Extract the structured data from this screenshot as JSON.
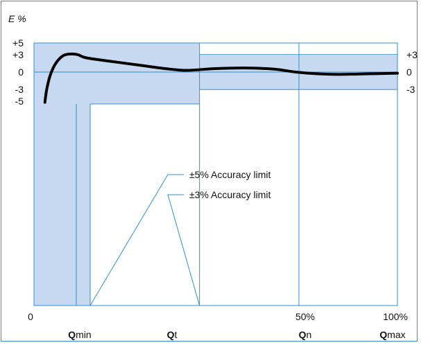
{
  "chart_data": {
    "type": "line",
    "ylabel": "E %",
    "left_ticks": [
      "+5",
      "+3",
      "0",
      "-3",
      "-5"
    ],
    "left_tick_values": [
      5,
      3,
      0,
      -3,
      -5
    ],
    "right_ticks": [
      "+3",
      "0",
      "-3"
    ],
    "right_tick_values": [
      3,
      0,
      -3
    ],
    "x_percent_ticks": [
      {
        "label": "0",
        "value": 0
      },
      {
        "label": "50%",
        "value": 50
      },
      {
        "label": "100%",
        "value": 100
      }
    ],
    "x_flow_ticks": [
      {
        "bold": "Q",
        "sub": "min",
        "value": 16
      },
      {
        "bold": "Q",
        "sub": "t",
        "value": 36
      },
      {
        "bold": "Q",
        "sub": "n",
        "value": 75
      },
      {
        "bold": "Q",
        "sub": "max",
        "value": 100
      }
    ],
    "flow_points": {
      "qmin": 16,
      "qt": 36,
      "qn": 75,
      "qmax": 100
    },
    "limits": {
      "low_band": 5,
      "high_band": 3,
      "label_5": "±5% Accuracy limit",
      "label_3": "±3% Accuracy limit"
    },
    "ylim": [
      -40,
      5
    ],
    "xlim": [
      0,
      100
    ],
    "series": [
      {
        "x": [
          3,
          3.5,
          4.5,
          6,
          8,
          10,
          12,
          14,
          18,
          24,
          30,
          36,
          42,
          50,
          58,
          66,
          72,
          78,
          84,
          92,
          100
        ],
        "y": [
          -5.2,
          -3,
          -0.5,
          1.5,
          2.8,
          3.1,
          3.0,
          2.5,
          2.1,
          1.6,
          1.1,
          0.6,
          0.3,
          0.6,
          0.7,
          0.5,
          0.0,
          -0.3,
          -0.4,
          -0.3,
          -0.2
        ]
      }
    ],
    "colors": {
      "band": "#c7d9f0",
      "line": "#2f8fd0",
      "curve": "#000000"
    }
  }
}
